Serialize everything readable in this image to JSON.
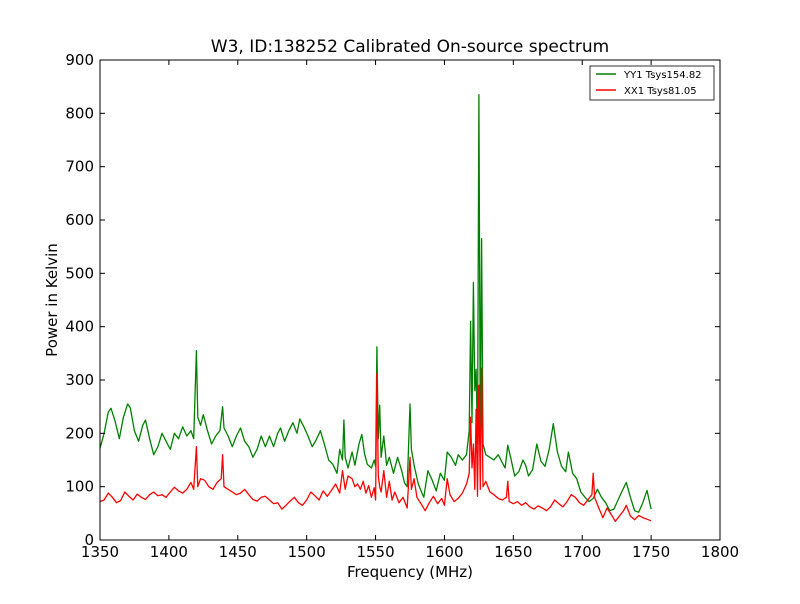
{
  "chart_data": {
    "type": "line",
    "title": "W3, ID:138252 Calibrated On-source spectrum",
    "xlabel": "Frequency (MHz)",
    "ylabel": "Power in Kelvin",
    "xlim": [
      1350,
      1800
    ],
    "ylim": [
      0,
      900
    ],
    "xticks": [
      1350,
      1400,
      1450,
      1500,
      1550,
      1600,
      1650,
      1700,
      1750,
      1800
    ],
    "yticks": [
      0,
      100,
      200,
      300,
      400,
      500,
      600,
      700,
      800,
      900
    ],
    "grid": false,
    "legend_position": "top-right",
    "series": [
      {
        "name": "YY1 Tsys154.82",
        "color": "#008000",
        "points": [
          [
            1350,
            172
          ],
          [
            1353,
            200
          ],
          [
            1356,
            240
          ],
          [
            1358,
            247
          ],
          [
            1361,
            222
          ],
          [
            1364,
            190
          ],
          [
            1367,
            230
          ],
          [
            1370,
            255
          ],
          [
            1372,
            248
          ],
          [
            1375,
            205
          ],
          [
            1378,
            185
          ],
          [
            1381,
            215
          ],
          [
            1383,
            225
          ],
          [
            1386,
            190
          ],
          [
            1389,
            160
          ],
          [
            1392,
            175
          ],
          [
            1395,
            200
          ],
          [
            1398,
            185
          ],
          [
            1401,
            170
          ],
          [
            1404,
            200
          ],
          [
            1407,
            190
          ],
          [
            1410,
            212
          ],
          [
            1413,
            195
          ],
          [
            1416,
            205
          ],
          [
            1418,
            190
          ],
          [
            1420,
            355
          ],
          [
            1421,
            230
          ],
          [
            1423,
            215
          ],
          [
            1425,
            235
          ],
          [
            1428,
            205
          ],
          [
            1431,
            180
          ],
          [
            1434,
            195
          ],
          [
            1437,
            205
          ],
          [
            1439,
            250
          ],
          [
            1440,
            210
          ],
          [
            1443,
            195
          ],
          [
            1446,
            175
          ],
          [
            1449,
            195
          ],
          [
            1452,
            210
          ],
          [
            1455,
            185
          ],
          [
            1458,
            175
          ],
          [
            1461,
            155
          ],
          [
            1464,
            170
          ],
          [
            1467,
            195
          ],
          [
            1470,
            175
          ],
          [
            1473,
            195
          ],
          [
            1476,
            175
          ],
          [
            1479,
            200
          ],
          [
            1481,
            210
          ],
          [
            1484,
            185
          ],
          [
            1487,
            205
          ],
          [
            1490,
            220
          ],
          [
            1493,
            200
          ],
          [
            1495,
            227
          ],
          [
            1498,
            212
          ],
          [
            1501,
            195
          ],
          [
            1504,
            175
          ],
          [
            1507,
            188
          ],
          [
            1510,
            205
          ],
          [
            1513,
            178
          ],
          [
            1516,
            150
          ],
          [
            1519,
            142
          ],
          [
            1522,
            125
          ],
          [
            1524,
            170
          ],
          [
            1526,
            150
          ],
          [
            1527,
            225
          ],
          [
            1528,
            155
          ],
          [
            1530,
            135
          ],
          [
            1533,
            165
          ],
          [
            1535,
            140
          ],
          [
            1538,
            180
          ],
          [
            1540,
            198
          ],
          [
            1542,
            162
          ],
          [
            1544,
            142
          ],
          [
            1547,
            135
          ],
          [
            1549,
            150
          ],
          [
            1550,
            138
          ],
          [
            1551,
            362
          ],
          [
            1552,
            190
          ],
          [
            1553,
            253
          ],
          [
            1554,
            155
          ],
          [
            1556,
            195
          ],
          [
            1558,
            140
          ],
          [
            1560,
            155
          ],
          [
            1563,
            125
          ],
          [
            1566,
            155
          ],
          [
            1569,
            130
          ],
          [
            1571,
            107
          ],
          [
            1573,
            100
          ],
          [
            1575,
            255
          ],
          [
            1576,
            170
          ],
          [
            1578,
            140
          ],
          [
            1581,
            105
          ],
          [
            1583,
            92
          ],
          [
            1585,
            80
          ],
          [
            1588,
            130
          ],
          [
            1591,
            113
          ],
          [
            1594,
            92
          ],
          [
            1597,
            125
          ],
          [
            1600,
            112
          ],
          [
            1602,
            165
          ],
          [
            1605,
            155
          ],
          [
            1608,
            140
          ],
          [
            1610,
            160
          ],
          [
            1613,
            150
          ],
          [
            1616,
            160
          ],
          [
            1618,
            205
          ],
          [
            1619,
            410
          ],
          [
            1620,
            220
          ],
          [
            1621,
            483
          ],
          [
            1622,
            280
          ],
          [
            1623,
            320
          ],
          [
            1624,
            180
          ],
          [
            1625,
            835
          ],
          [
            1626,
            200
          ],
          [
            1627,
            565
          ],
          [
            1628,
            180
          ],
          [
            1630,
            160
          ],
          [
            1633,
            155
          ],
          [
            1636,
            150
          ],
          [
            1639,
            160
          ],
          [
            1642,
            145
          ],
          [
            1644,
            135
          ],
          [
            1646,
            178
          ],
          [
            1648,
            155
          ],
          [
            1651,
            120
          ],
          [
            1654,
            128
          ],
          [
            1657,
            150
          ],
          [
            1659,
            140
          ],
          [
            1661,
            120
          ],
          [
            1664,
            132
          ],
          [
            1667,
            180
          ],
          [
            1670,
            148
          ],
          [
            1673,
            138
          ],
          [
            1676,
            170
          ],
          [
            1679,
            218
          ],
          [
            1682,
            165
          ],
          [
            1685,
            138
          ],
          [
            1688,
            128
          ],
          [
            1690,
            165
          ],
          [
            1693,
            125
          ],
          [
            1696,
            115
          ],
          [
            1699,
            90
          ],
          [
            1702,
            80
          ],
          [
            1705,
            72
          ],
          [
            1708,
            78
          ],
          [
            1711,
            95
          ],
          [
            1714,
            80
          ],
          [
            1717,
            70
          ],
          [
            1720,
            55
          ],
          [
            1723,
            58
          ],
          [
            1726,
            75
          ],
          [
            1729,
            92
          ],
          [
            1732,
            108
          ],
          [
            1735,
            80
          ],
          [
            1738,
            55
          ],
          [
            1741,
            52
          ],
          [
            1744,
            70
          ],
          [
            1747,
            93
          ],
          [
            1750,
            58
          ]
        ]
      },
      {
        "name": "XX1 Tsys81.05",
        "color": "#ff0000",
        "points": [
          [
            1350,
            72
          ],
          [
            1353,
            75
          ],
          [
            1356,
            88
          ],
          [
            1359,
            80
          ],
          [
            1362,
            70
          ],
          [
            1365,
            74
          ],
          [
            1368,
            90
          ],
          [
            1371,
            82
          ],
          [
            1374,
            75
          ],
          [
            1377,
            86
          ],
          [
            1380,
            80
          ],
          [
            1383,
            76
          ],
          [
            1386,
            85
          ],
          [
            1389,
            90
          ],
          [
            1392,
            83
          ],
          [
            1395,
            85
          ],
          [
            1398,
            80
          ],
          [
            1401,
            90
          ],
          [
            1404,
            99
          ],
          [
            1407,
            92
          ],
          [
            1410,
            88
          ],
          [
            1413,
            95
          ],
          [
            1416,
            108
          ],
          [
            1418,
            95
          ],
          [
            1420,
            175
          ],
          [
            1421,
            100
          ],
          [
            1423,
            115
          ],
          [
            1426,
            112
          ],
          [
            1429,
            100
          ],
          [
            1432,
            95
          ],
          [
            1435,
            108
          ],
          [
            1438,
            115
          ],
          [
            1439,
            160
          ],
          [
            1440,
            100
          ],
          [
            1443,
            95
          ],
          [
            1446,
            90
          ],
          [
            1449,
            85
          ],
          [
            1452,
            88
          ],
          [
            1455,
            95
          ],
          [
            1458,
            85
          ],
          [
            1461,
            76
          ],
          [
            1464,
            73
          ],
          [
            1467,
            80
          ],
          [
            1470,
            82
          ],
          [
            1473,
            75
          ],
          [
            1476,
            68
          ],
          [
            1479,
            70
          ],
          [
            1482,
            58
          ],
          [
            1485,
            65
          ],
          [
            1488,
            73
          ],
          [
            1491,
            80
          ],
          [
            1494,
            70
          ],
          [
            1497,
            65
          ],
          [
            1500,
            75
          ],
          [
            1503,
            90
          ],
          [
            1506,
            83
          ],
          [
            1509,
            75
          ],
          [
            1512,
            92
          ],
          [
            1515,
            82
          ],
          [
            1518,
            93
          ],
          [
            1521,
            105
          ],
          [
            1524,
            88
          ],
          [
            1526,
            130
          ],
          [
            1528,
            95
          ],
          [
            1530,
            120
          ],
          [
            1533,
            115
          ],
          [
            1535,
            100
          ],
          [
            1537,
            105
          ],
          [
            1539,
            95
          ],
          [
            1541,
            110
          ],
          [
            1543,
            88
          ],
          [
            1545,
            102
          ],
          [
            1547,
            80
          ],
          [
            1549,
            98
          ],
          [
            1550,
            75
          ],
          [
            1551,
            312
          ],
          [
            1552,
            120
          ],
          [
            1553,
            100
          ],
          [
            1554,
            90
          ],
          [
            1556,
            130
          ],
          [
            1558,
            80
          ],
          [
            1560,
            110
          ],
          [
            1562,
            75
          ],
          [
            1564,
            90
          ],
          [
            1567,
            70
          ],
          [
            1570,
            80
          ],
          [
            1573,
            60
          ],
          [
            1575,
            155
          ],
          [
            1576,
            95
          ],
          [
            1578,
            115
          ],
          [
            1580,
            80
          ],
          [
            1583,
            68
          ],
          [
            1586,
            55
          ],
          [
            1589,
            70
          ],
          [
            1592,
            82
          ],
          [
            1595,
            68
          ],
          [
            1598,
            78
          ],
          [
            1600,
            65
          ],
          [
            1602,
            115
          ],
          [
            1604,
            85
          ],
          [
            1607,
            72
          ],
          [
            1610,
            78
          ],
          [
            1613,
            88
          ],
          [
            1616,
            105
          ],
          [
            1618,
            125
          ],
          [
            1619,
            230
          ],
          [
            1620,
            135
          ],
          [
            1621,
            180
          ],
          [
            1622,
            95
          ],
          [
            1623,
            245
          ],
          [
            1624,
            82
          ],
          [
            1625,
            290
          ],
          [
            1626,
            95
          ],
          [
            1627,
            322
          ],
          [
            1628,
            100
          ],
          [
            1630,
            110
          ],
          [
            1633,
            90
          ],
          [
            1636,
            85
          ],
          [
            1639,
            78
          ],
          [
            1642,
            75
          ],
          [
            1645,
            80
          ],
          [
            1646,
            110
          ],
          [
            1647,
            72
          ],
          [
            1650,
            68
          ],
          [
            1653,
            72
          ],
          [
            1656,
            65
          ],
          [
            1659,
            70
          ],
          [
            1662,
            62
          ],
          [
            1665,
            58
          ],
          [
            1668,
            64
          ],
          [
            1671,
            60
          ],
          [
            1674,
            55
          ],
          [
            1677,
            62
          ],
          [
            1680,
            75
          ],
          [
            1683,
            68
          ],
          [
            1686,
            62
          ],
          [
            1689,
            72
          ],
          [
            1692,
            85
          ],
          [
            1695,
            80
          ],
          [
            1698,
            70
          ],
          [
            1701,
            65
          ],
          [
            1704,
            75
          ],
          [
            1707,
            85
          ],
          [
            1708,
            125
          ],
          [
            1709,
            80
          ],
          [
            1712,
            60
          ],
          [
            1715,
            42
          ],
          [
            1718,
            60
          ],
          [
            1721,
            48
          ],
          [
            1724,
            35
          ],
          [
            1727,
            45
          ],
          [
            1730,
            55
          ],
          [
            1732,
            65
          ],
          [
            1735,
            45
          ],
          [
            1738,
            38
          ],
          [
            1741,
            46
          ],
          [
            1744,
            42
          ],
          [
            1747,
            39
          ],
          [
            1750,
            36
          ]
        ]
      }
    ]
  }
}
